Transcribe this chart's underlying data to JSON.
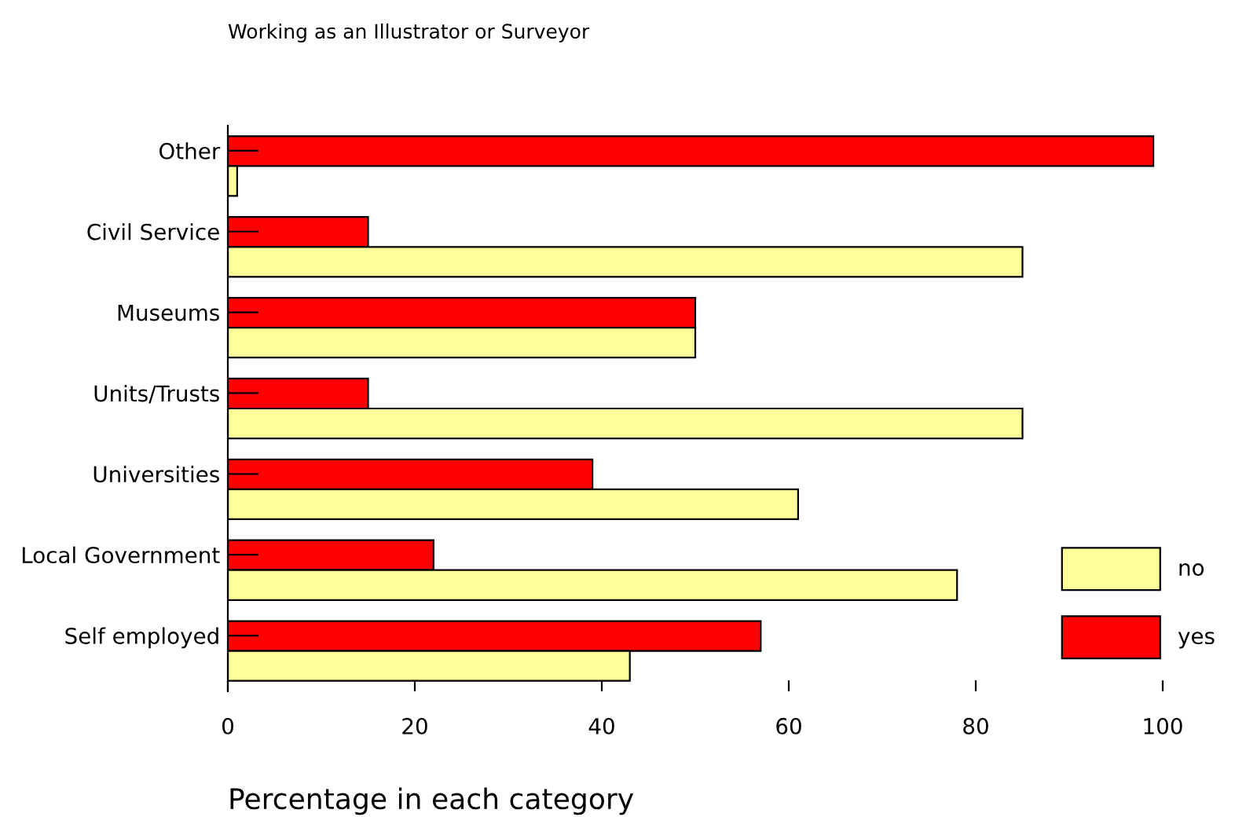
{
  "chart_data": {
    "type": "bar",
    "orientation": "horizontal",
    "title": "Working as an Illustrator or Surveyor",
    "xlabel": "Percentage in each category",
    "categories": [
      "Other",
      "Civil Service",
      "Museums",
      "Units/Trusts",
      "Universities",
      "Local Government",
      "Self employed"
    ],
    "series": [
      {
        "name": "yes",
        "color": "#ff0000",
        "values": [
          99,
          15,
          50,
          15,
          39,
          22,
          57
        ]
      },
      {
        "name": "no",
        "color": "#ffff99",
        "values": [
          1,
          85,
          50,
          85,
          61,
          78,
          43
        ]
      }
    ],
    "xlim": [
      0,
      100
    ],
    "xticks": [
      0,
      20,
      40,
      60,
      80,
      100
    ],
    "grid": false,
    "legend": "bottom right"
  }
}
